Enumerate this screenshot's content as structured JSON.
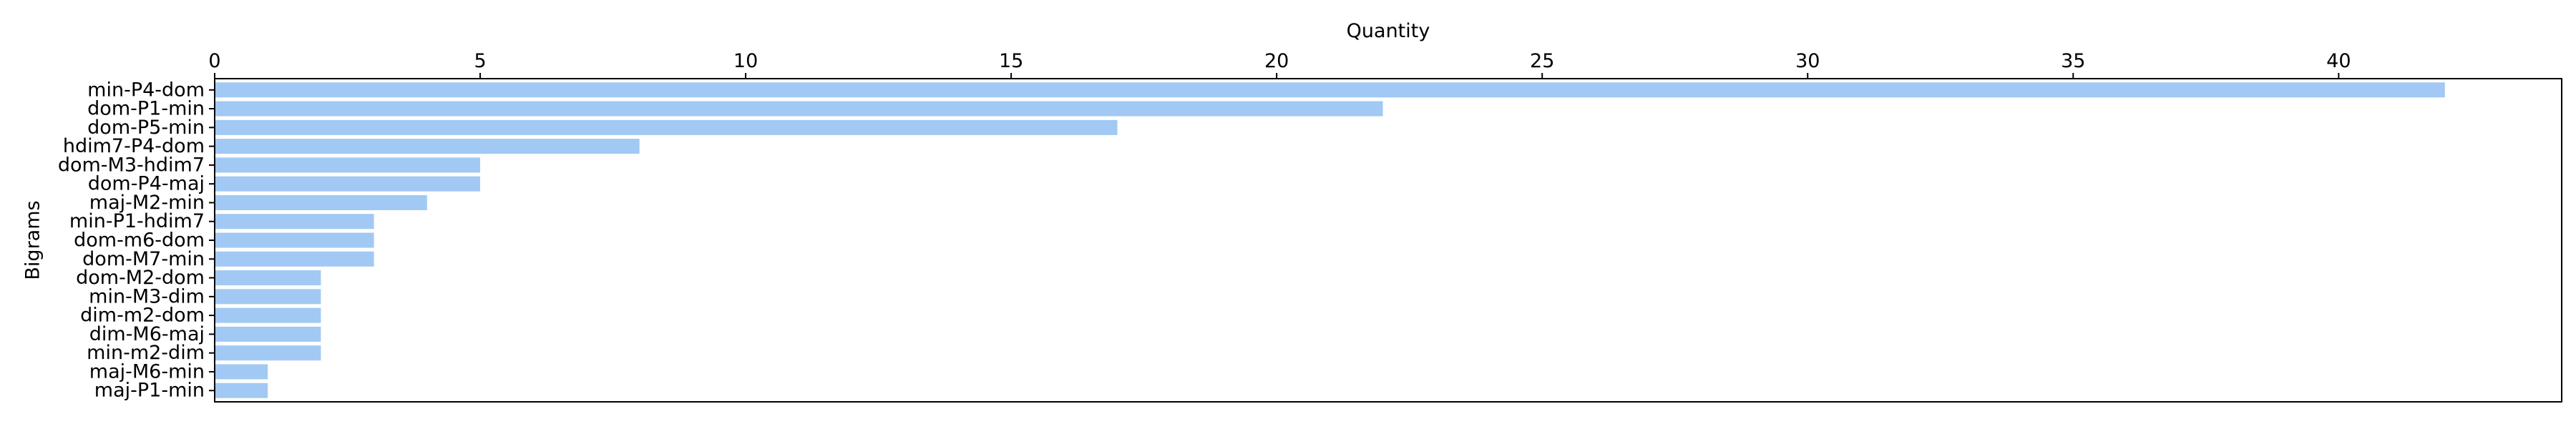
{
  "chart_data": {
    "type": "bar",
    "orientation": "horizontal",
    "title": "",
    "xlabel": "Quantity",
    "ylabel": "Bigrams",
    "xaxis_position": "top",
    "xlim": [
      0,
      44.2
    ],
    "xticks": [
      0,
      5,
      10,
      15,
      20,
      25,
      30,
      35,
      40
    ],
    "grid": false,
    "legend": "none",
    "bar_color": "#a1c9f4",
    "categories": [
      "min-P4-dom",
      "dom-P1-min",
      "dom-P5-min",
      "hdim7-P4-dom",
      "dom-M3-hdim7",
      "dom-P4-maj",
      "maj-M2-min",
      "min-P1-hdim7",
      "dom-m6-dom",
      "dom-M7-min",
      "dom-M2-dom",
      "min-M3-dim",
      "dim-m2-dom",
      "dim-M6-maj",
      "min-m2-dim",
      "maj-M6-min",
      "maj-P1-min"
    ],
    "values": [
      42,
      22,
      17,
      8,
      5,
      5,
      4,
      3,
      3,
      3,
      2,
      2,
      2,
      2,
      2,
      1,
      1
    ]
  }
}
